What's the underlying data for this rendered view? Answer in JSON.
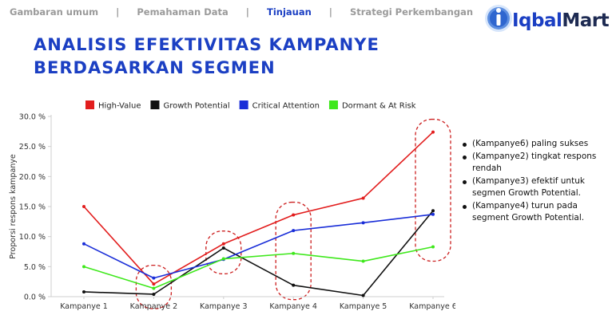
{
  "nav": {
    "items": [
      "Gambaran umum",
      "Pemahaman Data",
      "Tinjauan",
      "Strategi Perkembangan"
    ],
    "active_index": 2
  },
  "brand": {
    "name_part1": "Iqbal",
    "name_part2": "Mart",
    "color": "#1b3fc3"
  },
  "page": {
    "title_line1": "ANALISIS EFEKTIVITAS KAMPANYE",
    "title_line2": "BERDASARKAN SEGMEN"
  },
  "chart_data": {
    "type": "line",
    "categories": [
      "Kampanye 1",
      "Kampanye 2",
      "Kampanye 3",
      "Kampanye 4",
      "Kampanye 5",
      "Kampanye 6"
    ],
    "ylabel": "Proporsi respons kampanye",
    "ylim": [
      0,
      30
    ],
    "yticks": [
      "0.0 %",
      "5.0 %",
      "10.0 %",
      "15.0 %",
      "20.0 %",
      "25.0 %",
      "30.0 %"
    ],
    "grid": false,
    "legend_position": "top",
    "series": [
      {
        "name": "High-Value",
        "color": "#e21d1d",
        "values": [
          15.0,
          2.1,
          8.8,
          13.6,
          16.4,
          27.4
        ]
      },
      {
        "name": "Growth Potential",
        "color": "#111111",
        "values": [
          0.8,
          0.4,
          8.1,
          1.9,
          0.2,
          14.3
        ]
      },
      {
        "name": "Critical Attention",
        "color": "#1a2ed8",
        "values": [
          8.8,
          3.1,
          6.2,
          11.0,
          12.3,
          13.7
        ]
      },
      {
        "name": "Dormant & At Risk",
        "color": "#3ee81b",
        "values": [
          5.0,
          1.4,
          6.3,
          7.2,
          5.9,
          8.3
        ]
      }
    ],
    "highlight_color": "#cc1f1f",
    "highlighted_categories": [
      "Kampanye 2",
      "Kampanye 3",
      "Kampanye 4",
      "Kampanye 6"
    ]
  },
  "insights": [
    "(Kampanye6) paling sukses",
    " (Kampanye2) tingkat respons rendah",
    "(Kampanye3) efektif untuk segmen Growth Potential.",
    "(Kampanye4) turun pada segment Growth Potential."
  ]
}
